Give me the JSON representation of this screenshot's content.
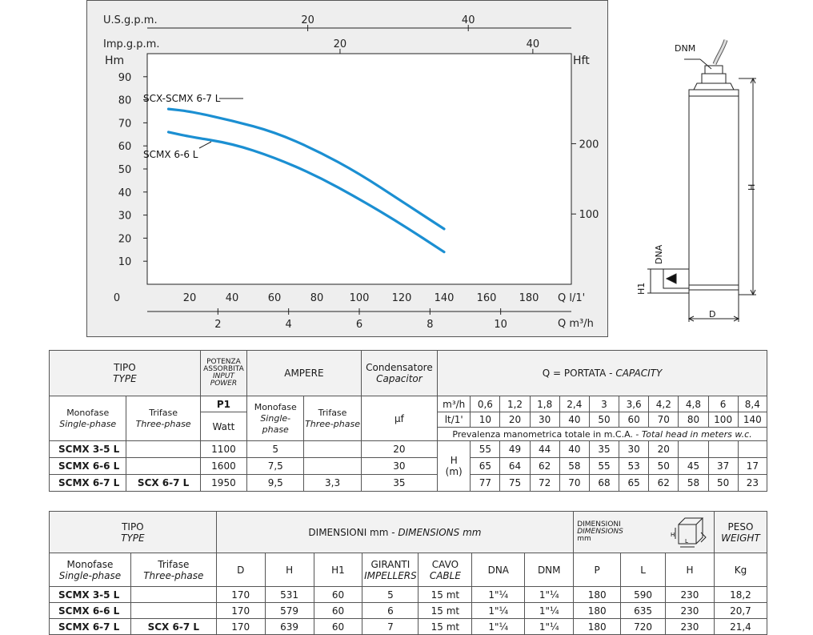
{
  "chart_data": {
    "type": "line",
    "left_axis_top_label": "U.S.g.p.m.",
    "left_axis_second_label": "Imp.g.p.m.",
    "ylabel": "Hm",
    "ylabel_right": "Hft",
    "xlabel": "Q l/1'",
    "xlabel2": "Q m³/h",
    "y_ticks": [
      10,
      20,
      30,
      40,
      50,
      60,
      70,
      80,
      90
    ],
    "x_ticks": [
      0,
      20,
      40,
      60,
      80,
      100,
      120,
      140,
      160,
      180
    ],
    "x2_ticks": [
      2,
      4,
      6,
      8,
      10
    ],
    "usgpm_ticks": [
      20,
      40
    ],
    "impgpm_ticks": [
      20,
      40
    ],
    "hft_ticks": [
      100,
      200
    ],
    "xlim": [
      0,
      200
    ],
    "ylim": [
      0,
      100
    ],
    "grid": true,
    "series": [
      {
        "name": "SCX-SCMX 6-7 L",
        "x": [
          10,
          20,
          40,
          60,
          80,
          100,
          120,
          140
        ],
        "y": [
          76,
          75,
          71,
          66,
          58,
          48,
          36,
          24
        ],
        "color": "#1b8fd2"
      },
      {
        "name": "SCMX 6-6 L",
        "x": [
          10,
          20,
          40,
          60,
          80,
          100,
          120,
          140
        ],
        "y": [
          66,
          64,
          61,
          55,
          47,
          37,
          26,
          14
        ],
        "color": "#1b8fd2"
      }
    ]
  },
  "drawing": {
    "dnm": "DNM",
    "dna": "DNA",
    "h": "H",
    "h1": "H1",
    "d": "D"
  },
  "table1": {
    "tipo": "TIPO",
    "type": "TYPE",
    "potenza": "POTENZA",
    "assorbita": "ASSORBITA",
    "input": "INPUT",
    "power": "POWER",
    "ampere": "AMPERE",
    "condensatore": "Condensatore",
    "capacitor": "Capacitor",
    "portata": "Q = PORTATA - ",
    "capacity": "CAPACITY",
    "monofase": "Monofase",
    "single_phase": "Single-phase",
    "trifase": "Trifase",
    "three_phase": "Three-phase",
    "p1": "P1",
    "watt": "Watt",
    "uf": "μf",
    "m3h": "m³/h",
    "lt1": "lt/1'",
    "q_m3h": [
      "0,6",
      "1,2",
      "1,8",
      "2,4",
      "3",
      "3,6",
      "4,2",
      "4,8",
      "6",
      "8,4"
    ],
    "q_lt": [
      "10",
      "20",
      "30",
      "40",
      "50",
      "60",
      "70",
      "80",
      "100",
      "140"
    ],
    "prevalenza": "Prevalenza manometrica totale in m.C.A. - ",
    "total_head": "Total head in meters w.c.",
    "h_label": "H",
    "m_label": "(m)",
    "rows": [
      {
        "mono": "SCMX 3-5 L",
        "tri": "",
        "watt": "1100",
        "amp_mono": "5",
        "amp_tri": "",
        "uf": "20",
        "h": [
          "55",
          "49",
          "44",
          "40",
          "35",
          "30",
          "20",
          "",
          "",
          ""
        ]
      },
      {
        "mono": "SCMX 6-6 L",
        "tri": "",
        "watt": "1600",
        "amp_mono": "7,5",
        "amp_tri": "",
        "uf": "30",
        "h": [
          "65",
          "64",
          "62",
          "58",
          "55",
          "53",
          "50",
          "45",
          "37",
          "17"
        ]
      },
      {
        "mono": "SCMX 6-7 L",
        "tri": "SCX 6-7 L",
        "watt": "1950",
        "amp_mono": "9,5",
        "amp_tri": "3,3",
        "uf": "35",
        "h": [
          "77",
          "75",
          "72",
          "70",
          "68",
          "65",
          "62",
          "58",
          "50",
          "23"
        ]
      }
    ]
  },
  "table2": {
    "tipo": "TIPO",
    "type": "TYPE",
    "dimensioni": "DIMENSIONI mm - ",
    "dimensions": "DIMENSIONS mm",
    "dim_small1": "DIMENSIONI",
    "dim_small2": "DIMENSIONS",
    "dim_small3": "mm",
    "peso": "PESO",
    "weight": "WEIGHT",
    "monofase": "Monofase",
    "single_phase": "Single-phase",
    "trifase": "Trifase",
    "three_phase": "Three-phase",
    "col_d": "D",
    "col_h": "H",
    "col_h1": "H1",
    "giranti": "GIRANTI",
    "impellers": "IMPELLERS",
    "cavo": "CAVO",
    "cable": "CABLE",
    "col_dna": "DNA",
    "col_dnm": "DNM",
    "col_p": "P",
    "col_l": "L",
    "col_hh": "H",
    "col_kg": "Kg",
    "rows": [
      {
        "mono": "SCMX 3-5 L",
        "tri": "",
        "d": "170",
        "h": "531",
        "h1": "60",
        "gir": "5",
        "cavo": "15 mt",
        "dna": "1\"¼",
        "dnm": "1\"¼",
        "p": "180",
        "l": "590",
        "hh": "230",
        "kg": "18,2"
      },
      {
        "mono": "SCMX 6-6 L",
        "tri": "",
        "d": "170",
        "h": "579",
        "h1": "60",
        "gir": "6",
        "cavo": "15 mt",
        "dna": "1\"¼",
        "dnm": "1\"¼",
        "p": "180",
        "l": "635",
        "hh": "230",
        "kg": "20,7"
      },
      {
        "mono": "SCMX 6-7 L",
        "tri": "SCX 6-7 L",
        "d": "170",
        "h": "639",
        "h1": "60",
        "gir": "7",
        "cavo": "15 mt",
        "dna": "1\"¼",
        "dnm": "1\"¼",
        "p": "180",
        "l": "720",
        "hh": "230",
        "kg": "21,4"
      }
    ]
  }
}
